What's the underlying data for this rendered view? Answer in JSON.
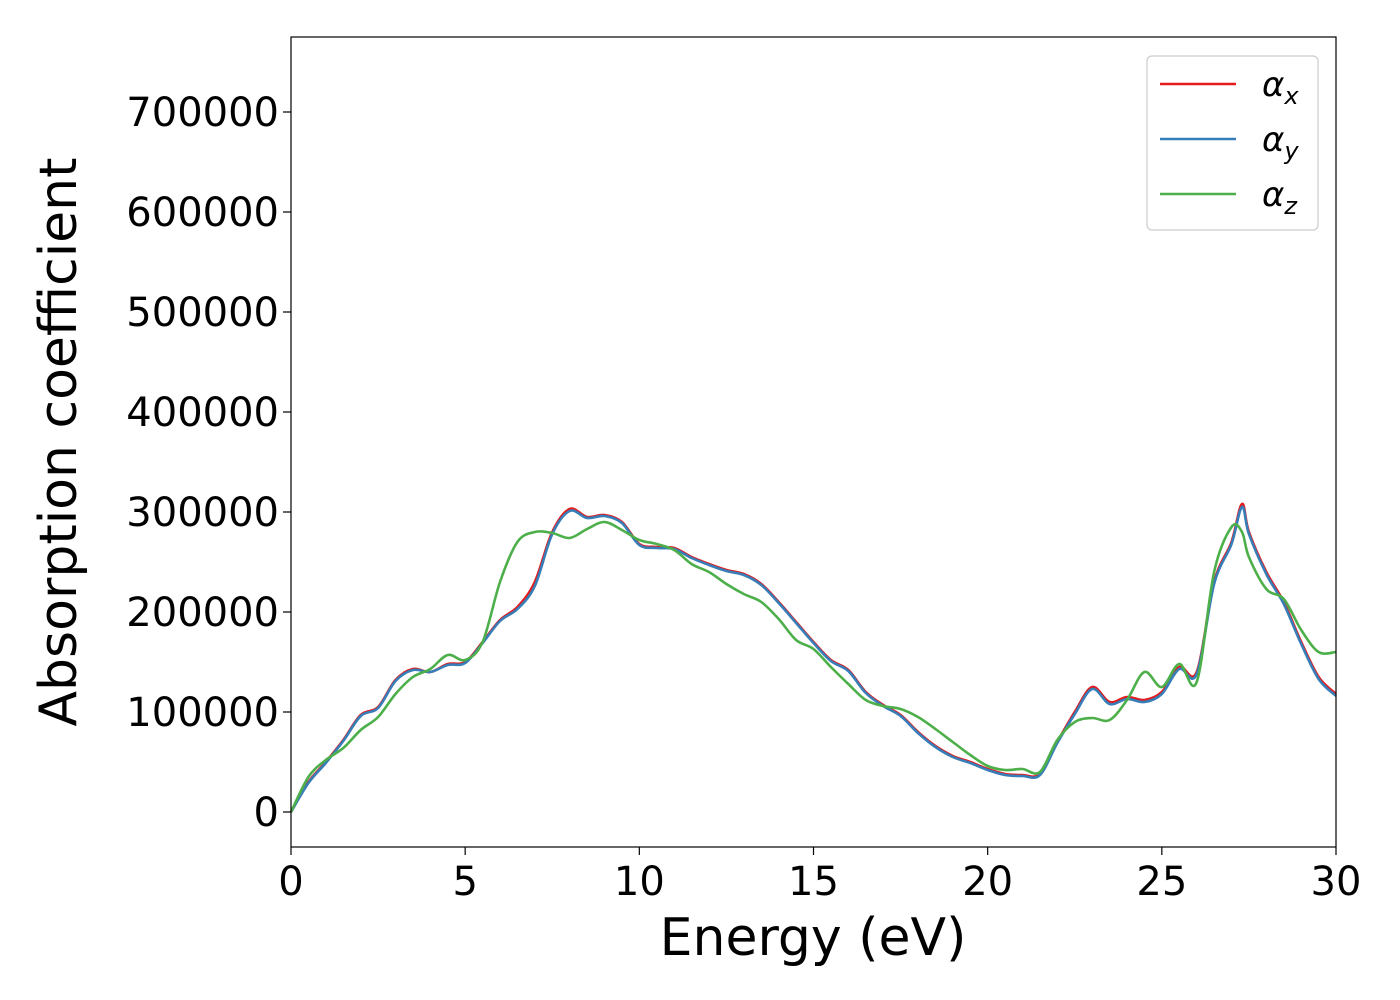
{
  "chart_data": {
    "type": "line",
    "title": "",
    "xlabel": "Energy (eV)",
    "ylabel": "Absorption coefficient",
    "xlim": [
      0,
      30
    ],
    "ylim": [
      -35000,
      775000
    ],
    "x_ticks": [
      "0",
      "5",
      "10",
      "15",
      "20",
      "25",
      "30"
    ],
    "y_ticks": [
      "0",
      "100000",
      "200000",
      "300000",
      "400000",
      "500000",
      "600000",
      "700000"
    ],
    "grid": false,
    "legend_position": "top-right",
    "series": [
      {
        "name": "α_x",
        "legend_symbol": "α",
        "legend_subscript": "x",
        "color": "#e41a1c",
        "x": [
          0,
          0.5,
          1,
          1.5,
          2,
          2.5,
          3,
          3.5,
          4,
          4.5,
          5,
          5.5,
          6,
          6.5,
          7,
          7.5,
          8,
          8.5,
          9,
          9.5,
          10,
          10.5,
          11,
          11.5,
          12,
          12.5,
          13,
          13.5,
          14,
          14.5,
          15,
          15.5,
          16,
          16.5,
          17,
          17.5,
          18,
          18.5,
          19,
          19.5,
          20,
          20.5,
          21,
          21.5,
          22,
          22.5,
          23,
          23.5,
          24,
          24.5,
          25,
          25.5,
          26,
          26.5,
          27,
          27.3,
          27.5,
          28,
          28.5,
          29,
          29.5,
          30
        ],
        "y": [
          0,
          30000,
          50000,
          72000,
          97000,
          105000,
          132000,
          143000,
          140000,
          148000,
          150000,
          170000,
          192000,
          205000,
          230000,
          280000,
          303000,
          295000,
          297000,
          290000,
          268000,
          265000,
          264000,
          255000,
          248000,
          242000,
          238000,
          228000,
          210000,
          190000,
          170000,
          152000,
          142000,
          120000,
          107000,
          97000,
          80000,
          66000,
          56000,
          50000,
          43000,
          38000,
          37000,
          38000,
          70000,
          100000,
          125000,
          110000,
          115000,
          112000,
          120000,
          145000,
          140000,
          230000,
          270000,
          308000,
          280000,
          240000,
          210000,
          170000,
          135000,
          118000
        ]
      },
      {
        "name": "α_y",
        "legend_symbol": "α",
        "legend_subscript": "y",
        "color": "#377eb8",
        "x": [
          0,
          0.5,
          1,
          1.5,
          2,
          2.5,
          3,
          3.5,
          4,
          4.5,
          5,
          5.5,
          6,
          6.5,
          7,
          7.5,
          8,
          8.5,
          9,
          9.5,
          10,
          10.5,
          11,
          11.5,
          12,
          12.5,
          13,
          13.5,
          14,
          14.5,
          15,
          15.5,
          16,
          16.5,
          17,
          17.5,
          18,
          18.5,
          19,
          19.5,
          20,
          20.5,
          21,
          21.5,
          22,
          22.5,
          23,
          23.5,
          24,
          24.5,
          25,
          25.5,
          26,
          26.5,
          27,
          27.3,
          27.5,
          28,
          28.5,
          29,
          29.5,
          30
        ],
        "y": [
          0,
          29000,
          49000,
          71000,
          96000,
          104000,
          131000,
          142000,
          140000,
          147000,
          149000,
          169000,
          191000,
          203000,
          226000,
          278000,
          301000,
          294000,
          296000,
          289000,
          267000,
          264000,
          263000,
          254000,
          247000,
          241000,
          237000,
          227000,
          209000,
          189000,
          169000,
          151000,
          141000,
          119000,
          106000,
          96000,
          79000,
          65000,
          55000,
          49000,
          42000,
          37000,
          36000,
          37000,
          69000,
          98000,
          123000,
          108000,
          113000,
          110000,
          118000,
          143000,
          138000,
          228000,
          268000,
          305000,
          278000,
          238000,
          208000,
          168000,
          133000,
          116000
        ]
      },
      {
        "name": "α_z",
        "legend_symbol": "α",
        "legend_subscript": "z",
        "color": "#4daf4a",
        "x": [
          0,
          0.5,
          1,
          1.5,
          2,
          2.5,
          3,
          3.5,
          4,
          4.5,
          5,
          5.5,
          6,
          6.5,
          7,
          7.5,
          8,
          8.5,
          9,
          9.5,
          10,
          10.5,
          11,
          11.5,
          12,
          12.5,
          13,
          13.5,
          14,
          14.5,
          15,
          15.5,
          16,
          16.5,
          17,
          17.5,
          18,
          18.5,
          19,
          19.5,
          20,
          20.5,
          21,
          21.5,
          22,
          22.5,
          23,
          23.5,
          24,
          24.5,
          25,
          25.5,
          26,
          26.5,
          27,
          27.3,
          27.5,
          28,
          28.5,
          29,
          29.5,
          30
        ],
        "y": [
          0,
          35000,
          52000,
          64000,
          82000,
          95000,
          118000,
          135000,
          143000,
          157000,
          152000,
          170000,
          230000,
          270000,
          280000,
          279000,
          274000,
          283000,
          290000,
          282000,
          272000,
          268000,
          262000,
          248000,
          240000,
          228000,
          218000,
          210000,
          193000,
          172000,
          163000,
          145000,
          128000,
          112000,
          106000,
          103000,
          95000,
          83000,
          70000,
          57000,
          46000,
          42000,
          43000,
          40000,
          72000,
          90000,
          94000,
          92000,
          112000,
          140000,
          125000,
          148000,
          130000,
          240000,
          285000,
          280000,
          255000,
          223000,
          213000,
          182000,
          160000,
          160000
        ]
      }
    ]
  }
}
